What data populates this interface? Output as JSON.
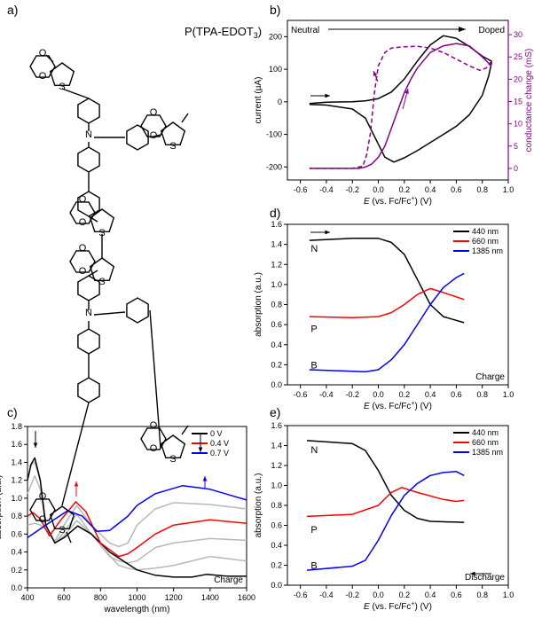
{
  "panel_labels": [
    "a)",
    "b)",
    "c)",
    "d)",
    "e)"
  ],
  "structure": {
    "title": "P(TPA-EDOT",
    "title_sub": "3",
    "title_end": ")",
    "atoms": {
      "S": "S",
      "O": "O",
      "N": "N"
    }
  },
  "chart_data": [
    {
      "id": "b",
      "type": "line",
      "xlabel_italic": "E",
      "xlabel": " (vs. Fc/Fc",
      "xlabel_sup": "+",
      "xlabel_end": ") (V)",
      "ylabel": "current (µA)",
      "y2label": "conductance change (mS)",
      "xlim": [
        -0.7,
        1.0
      ],
      "ylim": [
        -240,
        250
      ],
      "y2lim": [
        -2.6,
        33.2
      ],
      "xticks": [
        -0.6,
        -0.4,
        -0.2,
        0.0,
        0.2,
        0.4,
        0.6,
        0.8,
        1.0
      ],
      "yticks": [
        -200,
        -100,
        0,
        100,
        200
      ],
      "y2ticks": [
        0,
        5,
        10,
        15,
        20,
        25,
        30
      ],
      "annotations": {
        "left": "Neutral",
        "right": "Doped"
      },
      "colors": {
        "current": "#000000",
        "conductance": "#8b008b"
      },
      "series": [
        {
          "axis": "left",
          "style": "solid",
          "color": "#000000",
          "x": [
            -0.53,
            -0.4,
            -0.2,
            -0.1,
            0.0,
            0.1,
            0.2,
            0.3,
            0.4,
            0.5,
            0.6,
            0.7,
            0.8,
            0.87,
            0.87,
            0.85,
            0.8,
            0.7,
            0.6,
            0.5,
            0.4,
            0.3,
            0.2,
            0.12,
            0.05,
            0.0,
            -0.05,
            -0.1,
            -0.2,
            -0.4,
            -0.53
          ],
          "y": [
            -5,
            -1,
            0,
            3,
            10,
            30,
            70,
            125,
            175,
            203,
            195,
            170,
            140,
            125,
            118,
            80,
            20,
            -40,
            -75,
            -100,
            -125,
            -150,
            -172,
            -185,
            -170,
            -130,
            -90,
            -50,
            -22,
            -10,
            -8
          ]
        },
        {
          "axis": "right",
          "style": "solid",
          "color": "#8b008b",
          "x": [
            -0.53,
            -0.15,
            -0.1,
            -0.05,
            0.0,
            0.05,
            0.1,
            0.15,
            0.2,
            0.25,
            0.3,
            0.4,
            0.5,
            0.6,
            0.7,
            0.8,
            0.87
          ],
          "y": [
            0,
            0,
            0.3,
            1,
            2.5,
            5,
            9,
            13,
            17,
            20,
            22.5,
            26,
            27.5,
            28,
            27.5,
            25,
            23
          ]
        },
        {
          "axis": "right",
          "style": "dashed",
          "color": "#8b008b",
          "x": [
            0.87,
            0.83,
            0.78,
            0.7,
            0.6,
            0.5,
            0.4,
            0.3,
            0.2,
            0.1,
            0.05,
            0.0,
            -0.03,
            -0.06,
            -0.09,
            -0.12,
            -0.2,
            -0.53
          ],
          "y": [
            24,
            22.5,
            22,
            23,
            24.5,
            26,
            27,
            27.4,
            27.3,
            27,
            26,
            23,
            17,
            8,
            3,
            0.5,
            0,
            0
          ]
        }
      ]
    },
    {
      "id": "c",
      "type": "line",
      "xlabel": "wavelength (nm)",
      "ylabel": "absorption (a.u.)",
      "xlim": [
        400,
        1600
      ],
      "ylim": [
        0,
        1.8
      ],
      "xticks": [
        400,
        600,
        800,
        1000,
        1200,
        1400,
        1600
      ],
      "yticks": [
        0.0,
        0.2,
        0.4,
        0.6,
        0.8,
        1.0,
        1.2,
        1.4,
        1.6,
        1.8
      ],
      "annotation": "Charge",
      "legend": "top-right",
      "series": [
        {
          "color": "#b8b8b8",
          "x": [
            400,
            440,
            470,
            500,
            550,
            600,
            670,
            750,
            850,
            900,
            950,
            1000,
            1100,
            1200,
            1400,
            1600
          ],
          "y": [
            1.05,
            1.25,
            1.1,
            0.7,
            0.5,
            0.62,
            0.82,
            0.6,
            0.35,
            0.3,
            0.28,
            0.3,
            0.45,
            0.5,
            0.55,
            0.53
          ]
        },
        {
          "color": "#b8b8b8",
          "x": [
            400,
            440,
            470,
            500,
            550,
            600,
            670,
            750,
            850,
            900,
            950,
            1000,
            1100,
            1200,
            1400,
            1600
          ],
          "y": [
            0.7,
            0.72,
            0.7,
            0.65,
            0.52,
            0.7,
            0.92,
            0.7,
            0.5,
            0.46,
            0.5,
            0.7,
            0.88,
            0.95,
            0.93,
            0.88
          ]
        },
        {
          "color": "#b8b8b8",
          "x": [
            400,
            440,
            470,
            500,
            550,
            600,
            670,
            750,
            850,
            900,
            950,
            1000,
            1100,
            1200,
            1400,
            1600
          ],
          "y": [
            1.35,
            1.4,
            1.2,
            0.7,
            0.5,
            0.58,
            0.75,
            0.6,
            0.36,
            0.25,
            0.22,
            0.2,
            0.22,
            0.25,
            0.35,
            0.3
          ]
        },
        {
          "name": "0 V",
          "color": "#000000",
          "x": [
            400,
            420,
            440,
            470,
            500,
            550,
            600,
            675,
            750,
            850,
            1000,
            1100,
            1200,
            1300,
            1380,
            1500,
            1600
          ],
          "y": [
            1.2,
            1.38,
            1.45,
            1.2,
            0.7,
            0.5,
            0.56,
            0.69,
            0.6,
            0.4,
            0.2,
            0.14,
            0.12,
            0.12,
            0.15,
            0.13,
            0.13
          ]
        },
        {
          "name": "0.4 V",
          "color": "#ff0000",
          "x": [
            400,
            430,
            470,
            520,
            580,
            665,
            720,
            800,
            900,
            950,
            1000,
            1100,
            1200,
            1400,
            1600
          ],
          "y": [
            0.8,
            0.84,
            0.77,
            0.58,
            0.75,
            0.96,
            0.85,
            0.5,
            0.35,
            0.38,
            0.45,
            0.6,
            0.7,
            0.76,
            0.72
          ]
        },
        {
          "name": "0.7 V",
          "color": "#0000ff",
          "x": [
            400,
            500,
            620,
            700,
            780,
            850,
            950,
            1000,
            1100,
            1250,
            1400,
            1600
          ],
          "y": [
            0.56,
            0.7,
            0.86,
            0.8,
            0.63,
            0.64,
            0.8,
            0.92,
            1.05,
            1.14,
            1.1,
            0.98
          ]
        }
      ]
    },
    {
      "id": "d",
      "type": "line",
      "xlabel_italic": "E",
      "xlabel": " (vs. Fc/Fc",
      "xlabel_sup": "+",
      "xlabel_end": ") (V)",
      "ylabel": "absorption (a.u.)",
      "xlim": [
        -0.7,
        1.0
      ],
      "ylim": [
        0,
        1.6
      ],
      "xticks": [
        -0.6,
        -0.4,
        -0.2,
        0.0,
        0.2,
        0.4,
        0.6,
        0.8,
        1.0
      ],
      "yticks": [
        0.0,
        0.2,
        0.4,
        0.6,
        0.8,
        1.0,
        1.2,
        1.4,
        1.6
      ],
      "annotation": "Charge",
      "curve_labels": [
        "N",
        "P",
        "B"
      ],
      "legend": "top-right",
      "series": [
        {
          "name": "440 nm",
          "color": "#000000",
          "x": [
            -0.53,
            -0.2,
            0.0,
            0.1,
            0.2,
            0.3,
            0.4,
            0.5,
            0.66
          ],
          "y": [
            1.44,
            1.46,
            1.46,
            1.42,
            1.3,
            1.05,
            0.8,
            0.68,
            0.62
          ]
        },
        {
          "name": "660 nm",
          "color": "#ff0000",
          "x": [
            -0.53,
            -0.2,
            0.0,
            0.1,
            0.2,
            0.3,
            0.4,
            0.5,
            0.66
          ],
          "y": [
            0.68,
            0.67,
            0.68,
            0.72,
            0.8,
            0.9,
            0.96,
            0.92,
            0.85
          ]
        },
        {
          "name": "1385 nm",
          "color": "#0000ff",
          "x": [
            -0.53,
            -0.1,
            0.0,
            0.1,
            0.2,
            0.3,
            0.4,
            0.5,
            0.6,
            0.66
          ],
          "y": [
            0.15,
            0.13,
            0.15,
            0.25,
            0.4,
            0.6,
            0.8,
            0.97,
            1.07,
            1.11
          ]
        }
      ]
    },
    {
      "id": "e",
      "type": "line",
      "xlabel_italic": "E",
      "xlabel": " (vs. Fc/Fc",
      "xlabel_sup": "+",
      "xlabel_end": ") (V)",
      "ylabel": "absorption (a.u.)",
      "xlim": [
        -0.7,
        1.0
      ],
      "ylim": [
        0,
        1.6
      ],
      "xticks": [
        -0.6,
        -0.4,
        -0.2,
        0.0,
        0.2,
        0.4,
        0.6,
        0.8,
        1.0
      ],
      "yticks": [
        0.0,
        0.2,
        0.4,
        0.6,
        0.8,
        1.0,
        1.2,
        1.4,
        1.6
      ],
      "annotation": "Discharge",
      "curve_labels": [
        "N",
        "P",
        "B"
      ],
      "legend": "top-right",
      "series": [
        {
          "name": "440 nm",
          "color": "#000000",
          "x": [
            -0.55,
            -0.2,
            -0.1,
            0.0,
            0.1,
            0.2,
            0.3,
            0.4,
            0.66
          ],
          "y": [
            1.45,
            1.42,
            1.35,
            1.15,
            0.9,
            0.75,
            0.67,
            0.64,
            0.63
          ]
        },
        {
          "name": "660 nm",
          "color": "#ff0000",
          "x": [
            -0.55,
            -0.2,
            0.0,
            0.1,
            0.18,
            0.3,
            0.5,
            0.6,
            0.66
          ],
          "y": [
            0.69,
            0.71,
            0.8,
            0.93,
            0.98,
            0.93,
            0.86,
            0.84,
            0.85
          ]
        },
        {
          "name": "1385 nm",
          "color": "#0000ff",
          "x": [
            -0.55,
            -0.2,
            -0.1,
            0.0,
            0.1,
            0.2,
            0.3,
            0.4,
            0.5,
            0.6,
            0.66
          ],
          "y": [
            0.15,
            0.19,
            0.25,
            0.45,
            0.7,
            0.9,
            1.02,
            1.1,
            1.13,
            1.14,
            1.1
          ]
        }
      ]
    }
  ]
}
